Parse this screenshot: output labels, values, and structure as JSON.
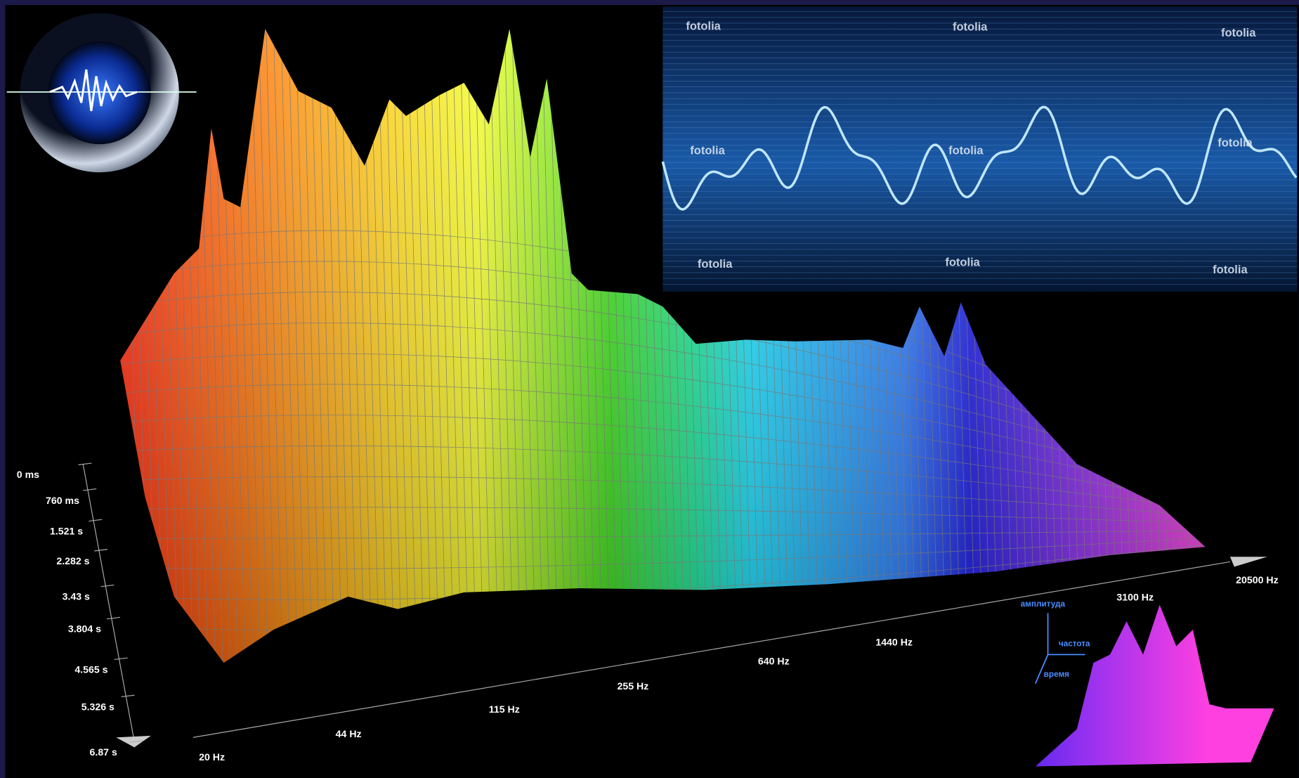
{
  "time_axis": {
    "labels": [
      "0 ms",
      "760 ms",
      "1.521 s",
      "2.282 s",
      "3.43 s",
      "3.804 s",
      "4.565 s",
      "5.326 s",
      "6.87 s"
    ]
  },
  "frequency_axis": {
    "labels": [
      "20 Hz",
      "44 Hz",
      "115 Hz",
      "255 Hz",
      "640 Hz",
      "1440 Hz",
      "3100 Hz",
      "20500 Hz"
    ]
  },
  "watermarks": [
    "fotolia",
    "fotolia",
    "fotolia",
    "fotolia",
    "fotolia",
    "fotolia",
    "fotolia",
    "fotolia",
    "fotolia"
  ],
  "inset": {
    "amplitude_label": "амплитуда",
    "frequency_label": "частота",
    "time_label": "время"
  }
}
